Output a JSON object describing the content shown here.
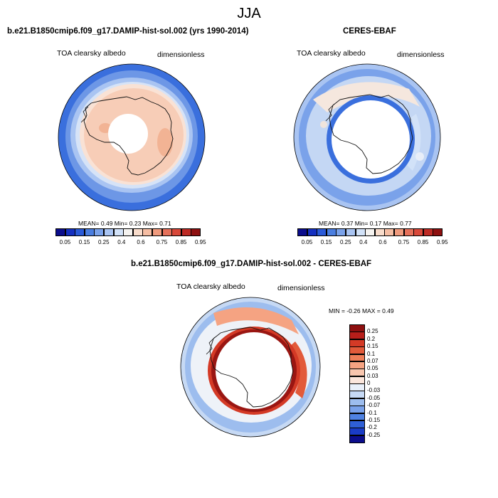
{
  "title": "JJA",
  "panel_left": {
    "title": "b.e21.B1850cmip6.f09_g17.DAMIP-hist-sol.002 (yrs 1990-2014)",
    "variable": "TOA clearsky albedo",
    "units": "dimensionless",
    "stats": "MEAN=  0.49  Min=  0.23  Max=  0.71"
  },
  "panel_right": {
    "title": "CERES-EBAF",
    "variable": "TOA clearsky albedo",
    "units": "dimensionless",
    "stats": "MEAN=  0.37  Min=  0.17  Max=  0.77"
  },
  "panel_diff": {
    "title": "b.e21.B1850cmip6.f09_g17.DAMIP-hist-sol.002 - CERES-EBAF",
    "variable": "TOA clearsky albedo",
    "units": "dimensionless",
    "stats": "MIN = -0.26 MAX =  0.49"
  },
  "colorbar_abs": {
    "labels": [
      "0.05",
      "0.15",
      "0.25",
      "0.4",
      "0.6",
      "0.75",
      "0.85",
      "0.95"
    ],
    "colors": [
      "#0b0d8c",
      "#1530c0",
      "#2a5ad8",
      "#4a7ee0",
      "#7aa2ea",
      "#a9c4f2",
      "#d2e2f8",
      "#f5f3f0",
      "#f8dccb",
      "#f5bda3",
      "#ef9a7d",
      "#e5705a",
      "#d8483a",
      "#bd2a24",
      "#8e1010"
    ]
  },
  "colorbar_diff": {
    "labels": [
      "0.25",
      "0.2",
      "0.15",
      "0.1",
      "0.07",
      "0.05",
      "0.03",
      "0",
      "-0.03",
      "-0.05",
      "-0.07",
      "-0.1",
      "-0.15",
      "-0.2",
      "-0.25"
    ],
    "colors": [
      "#8e1010",
      "#b81e1a",
      "#d43a26",
      "#e25a3a",
      "#ee7e58",
      "#f5a382",
      "#f9c6ae",
      "#fbe6dc",
      "#e9f0fa",
      "#c6d9f4",
      "#9dbdee",
      "#7aa2ea",
      "#4f82e2",
      "#2f5fd6",
      "#1a3cc6",
      "#0b0d8c"
    ]
  }
}
